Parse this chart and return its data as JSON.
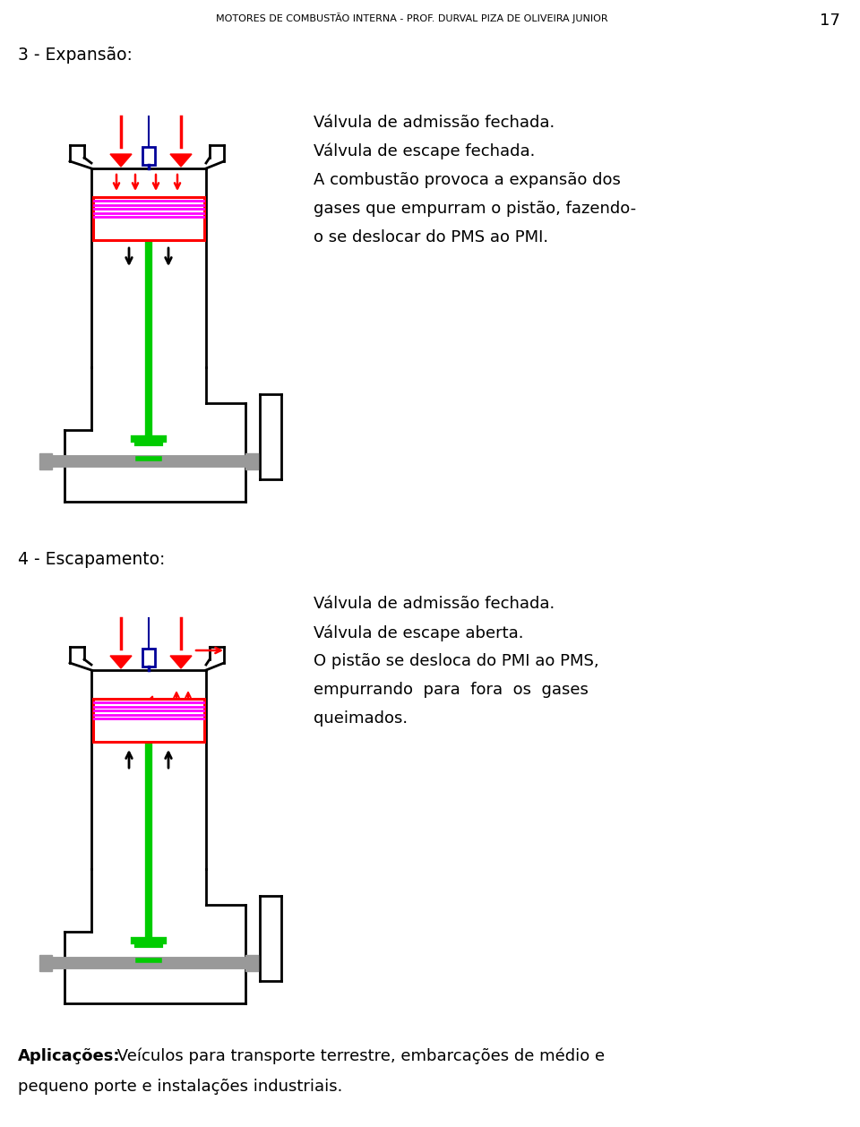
{
  "header_text": "MOTORES DE COMBUSTÃO INTERNA - PROF. DURVAL PIZA DE OLIVEIRA JUNIOR",
  "page_number": "17",
  "section1_title": "3 - Expansão:",
  "section1_text1": "Válvula de admissão fechada.",
  "section1_text2": "Válvula de escape fechada.",
  "section1_text3a": "A combustão provoca a expansão dos",
  "section1_text3b": "gases que empurram o pistão, fazendo-",
  "section1_text3c": "o se deslocar do PMS ao PMI.",
  "section2_title": "4 - Escapamento:",
  "section2_text1": "Válvula de admissão fechada.",
  "section2_text2": "Válvula de escape aberta.",
  "section2_text3a": "O pistão se desloca do PMI ao PMS,",
  "section2_text3b": "empurrando  para  fora  os  gases",
  "section2_text3c": "queimados.",
  "footer_bold": "Aplicações:",
  "footer_text": " Veículos para transporte terrestre, embarcações de médio e",
  "footer_text2": "pequeno porte e instalações industriais.",
  "bg_color": "#ffffff",
  "text_color": "#000000",
  "red": "#ff0000",
  "blue": "#000099",
  "green": "#00cc00",
  "magenta": "#ff00ff",
  "gray": "#999999",
  "black": "#000000"
}
